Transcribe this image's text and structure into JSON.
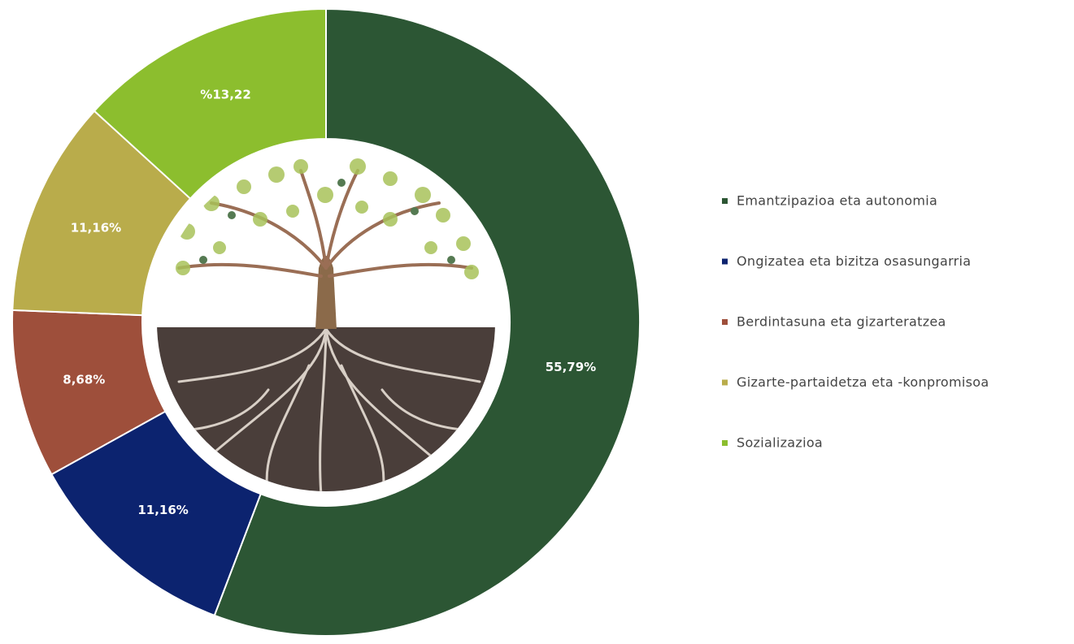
{
  "chart_data": {
    "type": "donut",
    "categories": [
      "Emantzipazioa eta autonomia",
      "Ongizatea eta bizitza osasungarria",
      "Berdintasuna eta gizarteratzea",
      "Gizarte-partaidetza eta -konpromisoa",
      "Sozializazioa"
    ],
    "values": [
      55.79,
      11.16,
      8.68,
      11.16,
      13.22
    ],
    "value_labels": [
      "55,79%",
      "11,16%",
      "8,68%",
      "11,16%",
      "%13,22"
    ],
    "colors": [
      "#2c5634",
      "#0c236f",
      "#9e4f3b",
      "#b9ac4b",
      "#8cbe2e"
    ],
    "legend": "right"
  }
}
